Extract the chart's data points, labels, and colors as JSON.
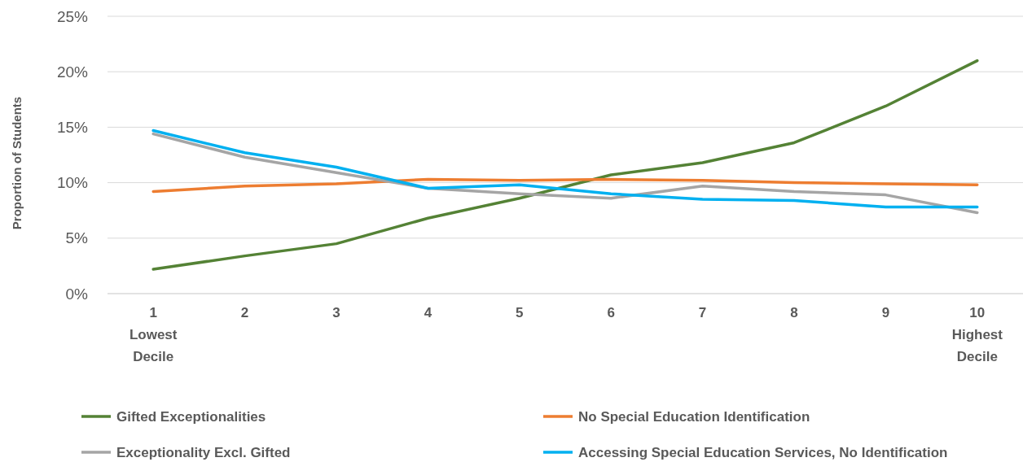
{
  "chart_data": {
    "type": "line",
    "ylabel": "Proportion of Students",
    "categories": [
      "1\nLowest\nDecile",
      "2",
      "3",
      "4",
      "5",
      "6",
      "7",
      "8",
      "9",
      "10\nHighest\nDecile"
    ],
    "series": [
      {
        "name": "Gifted Exceptionalities",
        "color": "#548235",
        "values": [
          2.2,
          3.4,
          4.5,
          6.8,
          8.6,
          10.7,
          11.8,
          13.6,
          16.9,
          21.0
        ]
      },
      {
        "name": "No Special Education Identification",
        "color": "#ed7d31",
        "values": [
          9.2,
          9.7,
          9.9,
          10.3,
          10.2,
          10.3,
          10.2,
          10.0,
          9.9,
          9.8
        ]
      },
      {
        "name": "Exceptionality Excl. Gifted",
        "color": "#a5a5a5",
        "values": [
          14.4,
          12.3,
          10.9,
          9.5,
          9.0,
          8.6,
          9.7,
          9.2,
          8.9,
          7.3
        ]
      },
      {
        "name": "Accessing Special Education Services, No Identification",
        "color": "#00b0f0",
        "values": [
          14.7,
          12.7,
          11.4,
          9.5,
          9.8,
          9.0,
          8.5,
          8.4,
          7.8,
          7.8
        ]
      }
    ],
    "ylim": [
      0,
      25
    ],
    "yticks": [
      {
        "value": 0,
        "label": "0%"
      },
      {
        "value": 5,
        "label": "5%"
      },
      {
        "value": 10,
        "label": "10%"
      },
      {
        "value": 15,
        "label": "15%"
      },
      {
        "value": 20,
        "label": "20%"
      },
      {
        "value": 25,
        "label": "25%"
      }
    ],
    "grid": "y",
    "legend": "bottom",
    "marker": "none",
    "line_style": "solid"
  }
}
